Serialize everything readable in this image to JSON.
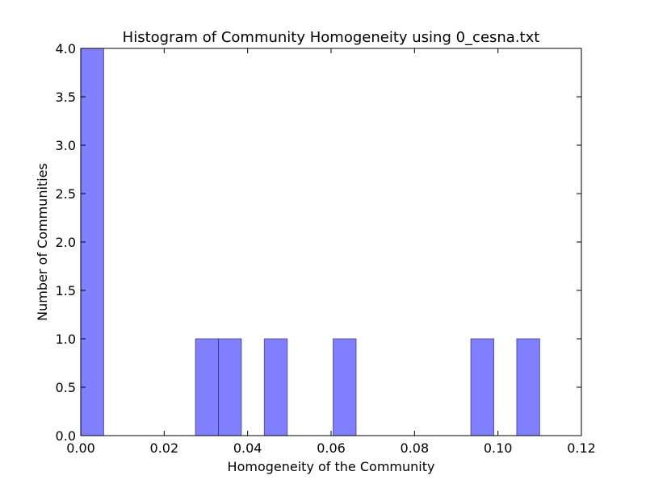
{
  "chart_data": {
    "type": "bar",
    "title": "Histogram of Community Homogeneity using 0_cesna.txt",
    "xlabel": "Homogeneity of the Community",
    "ylabel": "Number of Communities",
    "xlim": [
      0.0,
      0.12
    ],
    "ylim": [
      0.0,
      4.0
    ],
    "xticks": [
      "0.00",
      "0.02",
      "0.04",
      "0.06",
      "0.08",
      "0.10",
      "0.12"
    ],
    "yticks": [
      "0.0",
      "0.5",
      "1.0",
      "1.5",
      "2.0",
      "2.5",
      "3.0",
      "3.5",
      "4.0"
    ],
    "bins": [
      {
        "x0": 0.0,
        "x1": 0.0055,
        "count": 4
      },
      {
        "x0": 0.0275,
        "x1": 0.033,
        "count": 1
      },
      {
        "x0": 0.033,
        "x1": 0.0385,
        "count": 1
      },
      {
        "x0": 0.044,
        "x1": 0.0495,
        "count": 1
      },
      {
        "x0": 0.0605,
        "x1": 0.066,
        "count": 1
      },
      {
        "x0": 0.0935,
        "x1": 0.099,
        "count": 1
      },
      {
        "x0": 0.1045,
        "x1": 0.11,
        "count": 1
      }
    ],
    "bar_color": "#8080ff",
    "grid": false,
    "legend": "none"
  }
}
